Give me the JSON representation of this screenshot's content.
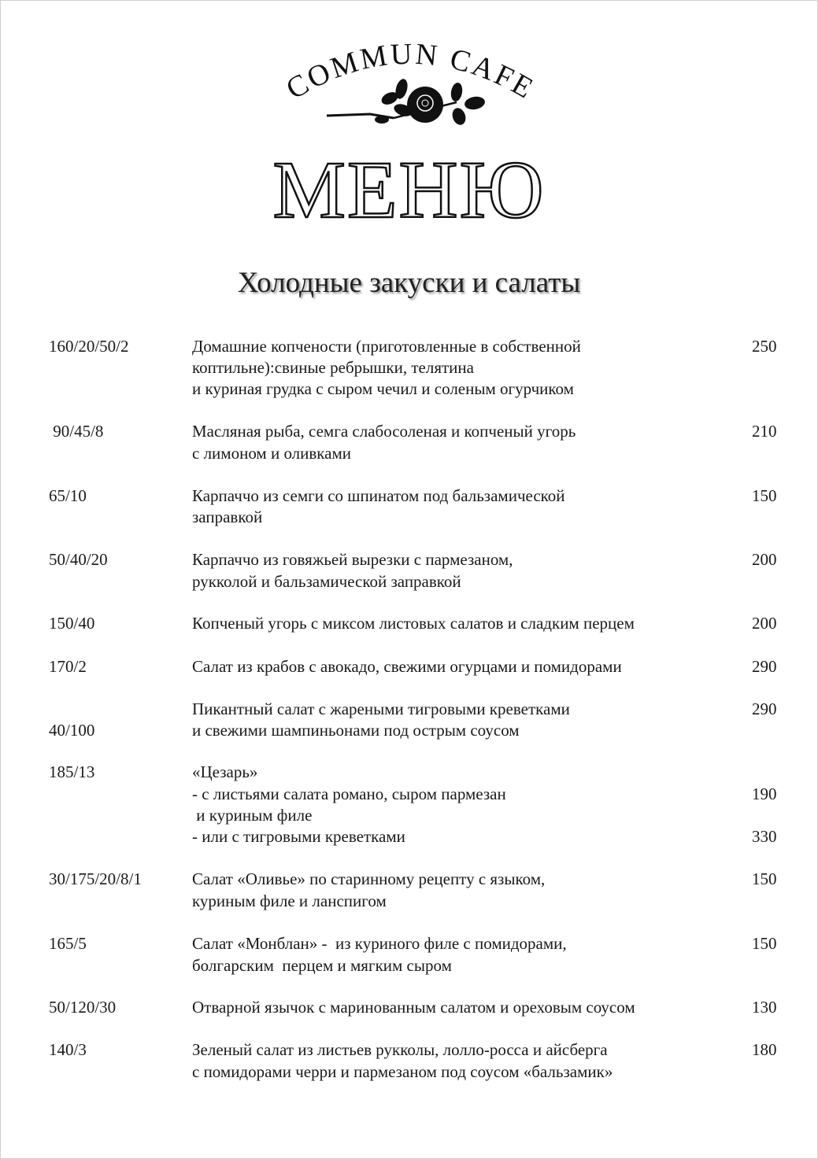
{
  "logo": {
    "text": "COMMUN CAFE",
    "icon": "rose-icon"
  },
  "title": "МЕНЮ",
  "section_title": "Холодные закуски и салаты",
  "items": [
    {
      "weight": "160/20/50/2",
      "price": "250",
      "lines": [
        "Домашние копчености (приготовленные в собственной",
        "коптильне):свиные ребрышки, телятина",
        "и куриная грудка с сыром чечил и соленым огурчиком"
      ]
    },
    {
      "weight": " 90/45/8",
      "price": "210",
      "lines": [
        "Масляная рыба, семга слабосоленая и копченый угорь",
        "с лимоном и оливками"
      ]
    },
    {
      "weight": "65/10",
      "price": "150",
      "lines": [
        "Карпаччо из семги со шпинатом под бальзамической",
        "заправкой"
      ]
    },
    {
      "weight": "50/40/20",
      "price": "200",
      "lines": [
        "Карпаччо из говяжьей вырезки с пармезаном,",
        "рукколой и бальзамической заправкой"
      ]
    },
    {
      "weight": "150/40",
      "price": "200",
      "lines": [
        "Копченый угорь с миксом листовых салатов и сладким перцем"
      ]
    },
    {
      "weight": "170/2",
      "price": "290",
      "lines": [
        "Салат из крабов с авокадо, свежими огурцами и помидорами"
      ]
    },
    {
      "weight": "40/100",
      "price": "290",
      "lines": [
        "Пикантный салат с жареными тигровыми креветками",
        "и свежими шампиньонами под острым соусом"
      ]
    },
    {
      "weight": "185/13",
      "lines": [
        "«Цезарь»",
        "- с листьями салата романо, сыром пармезан",
        " и куриным филе",
        "- или с тигровыми креветками"
      ],
      "line_prices": [
        "",
        "190",
        "",
        "330"
      ]
    },
    {
      "weight": "30/175/20/8/1",
      "price": "150",
      "lines": [
        "Салат «Оливье» по старинному рецепту с языком,",
        "куриным филе и ланспигом"
      ]
    },
    {
      "weight": "165/5",
      "price": "150",
      "lines": [
        "Салат «Монблан» -  из куриного филе с помидорами,",
        "болгарским  перцем и мягким сыром"
      ]
    },
    {
      "weight": "50/120/30",
      "price": "130",
      "lines": [
        "Отварной язычок с маринованным салатом и ореховым соусом"
      ]
    },
    {
      "weight": "140/3",
      "price": "180",
      "lines": [
        "Зеленый салат из листьев рукколы, лолло-росса и айсберга",
        "с помидорами черри и пармезаном под соусом «бальзамик»"
      ]
    }
  ]
}
